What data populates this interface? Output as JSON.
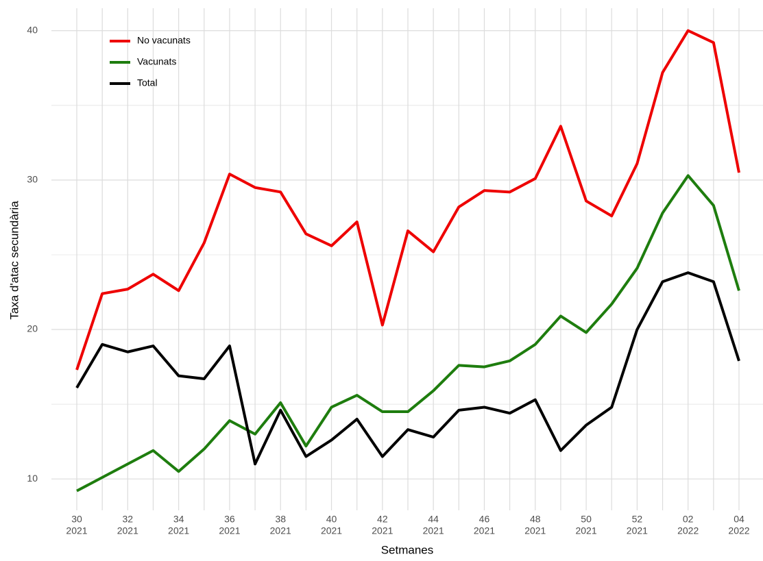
{
  "chart_data": {
    "type": "line",
    "x_label": "Setmanes",
    "y_label": "Taxa d'atac secundària",
    "categories": [
      [
        "30",
        "2021"
      ],
      null,
      [
        "32",
        "2021"
      ],
      null,
      [
        "34",
        "2021"
      ],
      null,
      [
        "36",
        "2021"
      ],
      null,
      [
        "38",
        "2021"
      ],
      null,
      [
        "40",
        "2021"
      ],
      null,
      [
        "42",
        "2021"
      ],
      null,
      [
        "44",
        "2021"
      ],
      null,
      [
        "46",
        "2021"
      ],
      null,
      [
        "48",
        "2021"
      ],
      null,
      [
        "50",
        "2021"
      ],
      null,
      [
        "52",
        "2021"
      ],
      null,
      [
        "02",
        "2022"
      ],
      null,
      [
        "04",
        "2022"
      ]
    ],
    "series": [
      {
        "name": "No vacunats",
        "color": "#ee0000",
        "values": [
          17.3,
          22.4,
          22.7,
          23.7,
          22.6,
          25.8,
          30.4,
          29.5,
          29.2,
          26.4,
          25.6,
          27.2,
          20.3,
          26.6,
          25.2,
          28.2,
          29.3,
          29.2,
          30.1,
          33.6,
          28.6,
          27.6,
          31.1,
          37.2,
          40.0,
          39.2,
          30.5
        ]
      },
      {
        "name": "Vacunats",
        "color": "#1e7d0e",
        "values": [
          9.2,
          10.1,
          11.0,
          11.9,
          10.5,
          12.0,
          13.9,
          13.0,
          15.1,
          12.2,
          14.8,
          15.6,
          14.5,
          14.5,
          15.9,
          17.6,
          17.5,
          17.9,
          19.0,
          20.9,
          19.8,
          21.7,
          24.1,
          27.8,
          30.3,
          28.3,
          22.6
        ]
      },
      {
        "name": "Total",
        "color": "#000000",
        "values": [
          16.1,
          19.0,
          18.5,
          18.9,
          16.9,
          16.7,
          18.9,
          11.0,
          14.6,
          11.5,
          12.6,
          14.0,
          11.5,
          13.3,
          12.8,
          14.6,
          14.8,
          14.4,
          15.3,
          11.9,
          13.6,
          14.8,
          20.0,
          23.2,
          23.8,
          23.2,
          17.9
        ]
      }
    ],
    "ylim": [
      7.9,
      41.5
    ],
    "yticks": [
      10,
      20,
      30,
      40
    ],
    "grid": true,
    "legend": "top-left"
  }
}
